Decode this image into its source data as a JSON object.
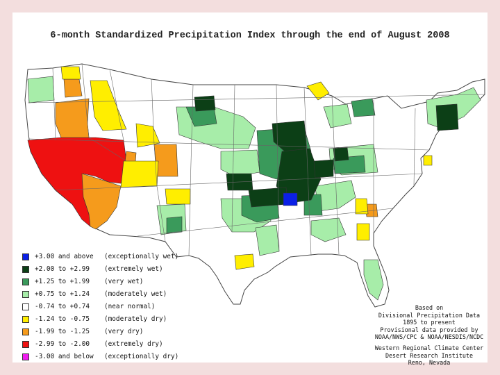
{
  "title": "6-month Standardized Precipitation Index through the end of August 2008",
  "legend": [
    {
      "range": "+3.00 and above",
      "label": "(exceptionally wet)",
      "color": "#0b20e6"
    },
    {
      "range": "+2.00 to +2.99",
      "label": "(extremely wet)",
      "color": "#0c3f16"
    },
    {
      "range": "+1.25 to +1.99",
      "label": "(very wet)",
      "color": "#3a9a5b"
    },
    {
      "range": "+0.75 to +1.24",
      "label": "(moderately wet)",
      "color": "#a7eda9"
    },
    {
      "range": "-0.74 to +0.74",
      "label": "(near normal)",
      "color": "#ffffff"
    },
    {
      "range": "-1.24 to -0.75",
      "label": "(moderately dry)",
      "color": "#ffee00"
    },
    {
      "range": "-1.99 to -1.25",
      "label": "(very dry)",
      "color": "#f59b1c"
    },
    {
      "range": "-2.99 to -2.00",
      "label": "(extremely dry)",
      "color": "#ee1111"
    },
    {
      "range": "-3.00 and below",
      "label": "(exceptionally dry)",
      "color": "#f01cf0"
    }
  ],
  "credits": {
    "line1": "Based on",
    "line2": "Divisional Precipitation Data",
    "line3": "1895 to present",
    "line4": "Provisional data provided by",
    "line5": "NOAA/NWS/CPC & NOAA/NESDIS/NCDC",
    "line6": "Western Regional Climate Center",
    "line7": "Desert Research Institute",
    "line8": "Reno, Nevada"
  }
}
